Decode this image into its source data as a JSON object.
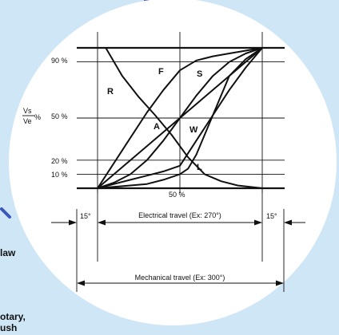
{
  "colors": {
    "page_background": "#cfe6f7",
    "disc": "#ffffff",
    "ink": "#111111",
    "accent_blue": "#3a58b8"
  },
  "side_text": {
    "law": "law",
    "rotary": "otary,",
    "brush": "ush"
  },
  "chart_data": {
    "type": "line",
    "y_unit_label": {
      "numerator": "Vs",
      "denominator": "Ve",
      "suffix": "%"
    },
    "y_ticks": [
      "90 %",
      "50 %",
      "20 %",
      "10 %"
    ],
    "x_tick": "50 %",
    "xlim": [
      0,
      100
    ],
    "ylim": [
      0,
      100
    ],
    "grid": true,
    "series": [
      {
        "name": "F",
        "x": [
          0,
          5,
          10,
          20,
          30,
          40,
          50,
          60,
          70,
          80,
          90,
          100
        ],
        "y": [
          0,
          9,
          18,
          36,
          54,
          70,
          84,
          91,
          94,
          96,
          98,
          100
        ]
      },
      {
        "name": "S",
        "x": [
          0,
          10,
          20,
          30,
          40,
          50,
          60,
          70,
          80,
          90,
          100
        ],
        "y": [
          0,
          4,
          10,
          20,
          34,
          50,
          66,
          80,
          90,
          96,
          100
        ]
      },
      {
        "name": "A",
        "x": [
          0,
          50,
          100
        ],
        "y": [
          0,
          50,
          100
        ]
      },
      {
        "name": "W",
        "x": [
          0,
          10,
          20,
          30,
          40,
          50,
          60,
          70,
          80,
          90,
          100
        ],
        "y": [
          0,
          3,
          6,
          9,
          12,
          16,
          34,
          52,
          70,
          86,
          100
        ]
      },
      {
        "name": "L",
        "x": [
          0,
          10,
          20,
          30,
          40,
          50,
          55,
          60,
          70,
          80,
          90,
          100
        ],
        "y": [
          0,
          1,
          2,
          3,
          6,
          10,
          14,
          24,
          52,
          80,
          92,
          100
        ]
      },
      {
        "name": "R",
        "x": [
          0,
          5,
          15,
          25,
          35,
          45,
          55,
          65,
          75,
          85,
          100
        ],
        "y": [
          100,
          100,
          80,
          65,
          52,
          38,
          22,
          10,
          5,
          2,
          0
        ]
      }
    ],
    "travel": {
      "electrical_label": "Electrical travel (Ex: 270°)",
      "mechanical_label": "Mechanical travel (Ex: 300°)",
      "end_angle_left": "15°",
      "end_angle_right": "15°"
    }
  }
}
